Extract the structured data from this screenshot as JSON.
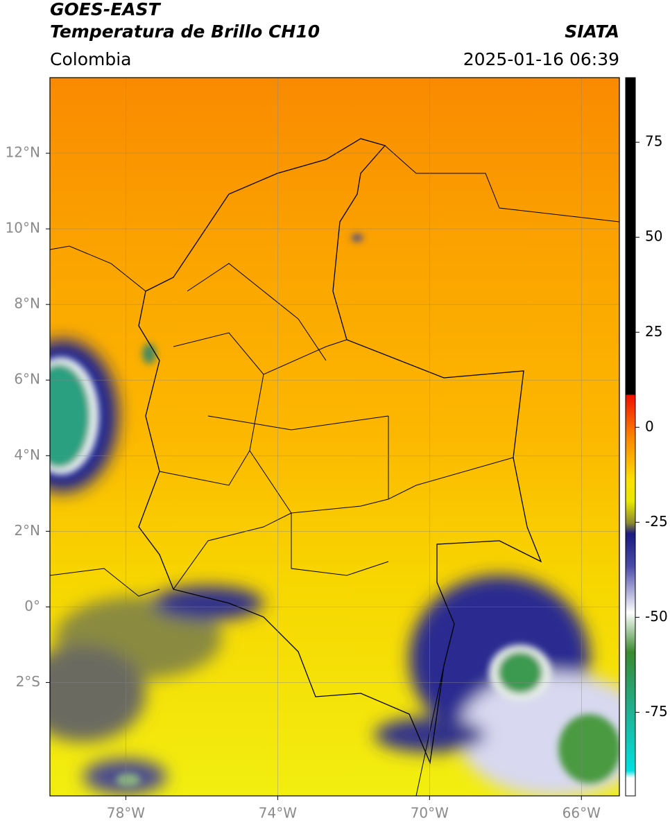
{
  "header": {
    "title": "GOES-EAST",
    "subtitle": "Temperatura de Brillo CH10",
    "source": "SIATA",
    "region": "Colombia",
    "datetime": "2025-01-16 06:39"
  },
  "map": {
    "xlim": [
      -80,
      -65
    ],
    "ylim": [
      -5,
      14
    ],
    "xticks": [
      {
        "value": -78,
        "label": "78°W"
      },
      {
        "value": -74,
        "label": "74°W"
      },
      {
        "value": -70,
        "label": "70°W"
      },
      {
        "value": -66,
        "label": "66°W"
      }
    ],
    "yticks": [
      {
        "value": 12,
        "label": "12°N"
      },
      {
        "value": 10,
        "label": "10°N"
      },
      {
        "value": 8,
        "label": "8°N"
      },
      {
        "value": 6,
        "label": "6°N"
      },
      {
        "value": 4,
        "label": "4°N"
      },
      {
        "value": 2,
        "label": "2°N"
      },
      {
        "value": 0,
        "label": "0°"
      },
      {
        "value": -2,
        "label": "2°S"
      }
    ],
    "grid": true
  },
  "colorbar": {
    "lim": [
      -97,
      92
    ],
    "ticks": [
      75,
      50,
      25,
      0,
      -25,
      -50,
      -75
    ]
  }
}
